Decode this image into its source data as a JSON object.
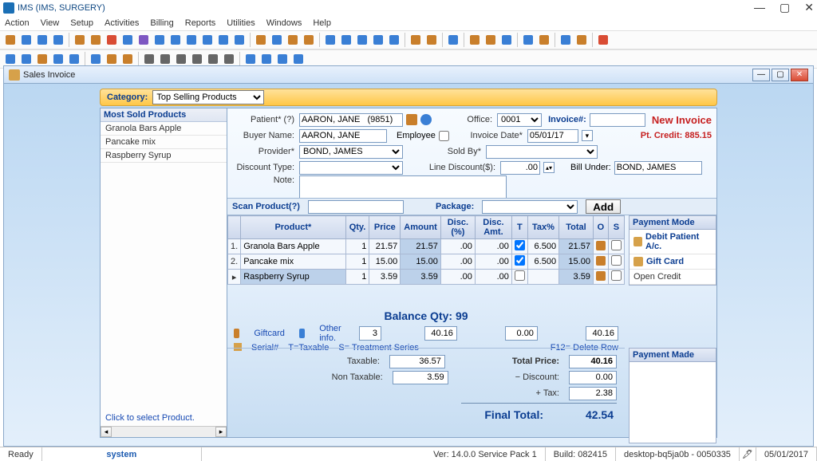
{
  "app": {
    "title": "IMS (IMS, SURGERY)"
  },
  "menus": [
    "Action",
    "View",
    "Setup",
    "Activities",
    "Billing",
    "Reports",
    "Utilities",
    "Windows",
    "Help"
  ],
  "toolbar_icons": [
    [
      "#c97f2b",
      "#3a7fd5",
      "#3a7fd5",
      "#3a7fd5"
    ],
    [
      "#c97f2b",
      "#c97f2b",
      "#d94c34",
      "#3a7fd5",
      "#7e57c2",
      "#3a7fd5",
      "#3a7fd5",
      "#3a7fd5",
      "#3a7fd5",
      "#3a7fd5",
      "#3a7fd5"
    ],
    [
      "#c97f2b",
      "#3a7fd5",
      "#c97f2b",
      "#c97f2b"
    ],
    [
      "#3a7fd5",
      "#3a7fd5",
      "#3a7fd5",
      "#3a7fd5",
      "#3a7fd5"
    ],
    [
      "#c97f2b",
      "#c97f2b"
    ],
    [
      "#3a7fd5"
    ],
    [
      "#c97f2b",
      "#c97f2b",
      "#3a7fd5"
    ],
    [
      "#3a7fd5",
      "#c97f2b"
    ],
    [
      "#3a7fd5",
      "#c97f2b"
    ],
    [
      "#d94c34"
    ]
  ],
  "toolbar2_icons": [
    [
      "#3a7fd5",
      "#3a7fd5",
      "#c97f2b",
      "#3a7fd5",
      "#3a7fd5"
    ],
    [
      "#3a7fd5",
      "#c97f2b",
      "#c97f2b"
    ],
    [
      "#666",
      "#666",
      "#666",
      "#666",
      "#666",
      "#666"
    ],
    [
      "#3a7fd5",
      "#3a7fd5",
      "#3a7fd5",
      "#3a7fd5"
    ]
  ],
  "child": {
    "title": "Sales Invoice"
  },
  "category": {
    "label": "Category:",
    "value": "Top Selling Products"
  },
  "sidebar": {
    "header": "Most Sold Products",
    "items": [
      "Granola Bars Apple",
      "Pancake mix",
      "Raspberry Syrup"
    ],
    "footer": "Click to select Product."
  },
  "header": {
    "patient_label": "Patient* (?)",
    "patient_value": "AARON, JANE   (9851)",
    "buyer_label": "Buyer Name:",
    "buyer_value": "AARON, JANE",
    "employee_label": "Employee",
    "provider_label": "Provider*",
    "provider_value": "BOND, JAMES",
    "discount_type_label": "Discount Type:",
    "note_label": "Note:",
    "office_label": "Office:",
    "office_value": "0001",
    "invoice_date_label": "Invoice Date*",
    "invoice_date_value": "05/01/17",
    "sold_by_label": "Sold By*",
    "line_disc_label": "Line Discount($):",
    "line_disc_value": ".00",
    "bill_under_label": "Bill Under:",
    "bill_under_value": "BOND, JAMES",
    "invoice_no_label": "Invoice#:",
    "new_invoice": "New Invoice",
    "credit": "Pt. Credit: 885.15"
  },
  "scan": {
    "scan_label": "Scan Product(?)",
    "package_label": "Package:",
    "add": "Add"
  },
  "grid": {
    "cols": [
      "Product*",
      "Qty.",
      "Price",
      "Amount",
      "Disc.(%)",
      "Disc. Amt.",
      "T",
      "Tax%",
      "Total",
      "O",
      "S"
    ],
    "rows": [
      {
        "n": "1.",
        "product": "Granola Bars Apple",
        "qty": "1",
        "price": "21.57",
        "amount": "21.57",
        "discp": ".00",
        "disca": ".00",
        "t": true,
        "tax": "6.500",
        "total": "21.57"
      },
      {
        "n": "2.",
        "product": "Pancake mix",
        "qty": "1",
        "price": "15.00",
        "amount": "15.00",
        "discp": ".00",
        "disca": ".00",
        "t": true,
        "tax": "6.500",
        "total": "15.00"
      },
      {
        "n": "",
        "product": "Raspberry Syrup",
        "qty": "1",
        "price": "3.59",
        "amount": "3.59",
        "discp": ".00",
        "disca": ".00",
        "t": false,
        "tax": "",
        "total": "3.59",
        "active": true
      }
    ]
  },
  "paymodes": {
    "header": "Payment Mode",
    "items": [
      "Debit Patient A/c.",
      "Gift Card",
      "Open Credit"
    ]
  },
  "balance": {
    "title": "Balance Qty: 99",
    "giftcard": "Giftcard",
    "other": "Other info.",
    "qty": "3",
    "amount": "40.16",
    "disc": "0.00",
    "total": "40.16",
    "legend_serial": "Serial#",
    "legend_tax": "T=Taxable",
    "legend_ts": "S= Treatment Series",
    "f12": "F12= Delete Row"
  },
  "totals": {
    "taxable_label": "Taxable:",
    "taxable": "36.57",
    "nontax_label": "Non Taxable:",
    "nontax": "3.59",
    "totalprice_label": "Total Price:",
    "totalprice": "40.16",
    "discount_label": "− Discount:",
    "discount": "0.00",
    "tax_label": "+ Tax:",
    "tax": "2.38",
    "final_label": "Final Total:",
    "final": "42.54"
  },
  "paymade": {
    "header": "Payment Made"
  },
  "status": {
    "ready": "Ready",
    "user": "system",
    "ver": "Ver: 14.0.0 Service Pack 1",
    "build": "Build: 082415",
    "host": "desktop-bq5ja0b - 0050335",
    "date": "05/01/2017"
  },
  "colors": {
    "accent": "#0b3d91",
    "warn": "#c62020"
  }
}
